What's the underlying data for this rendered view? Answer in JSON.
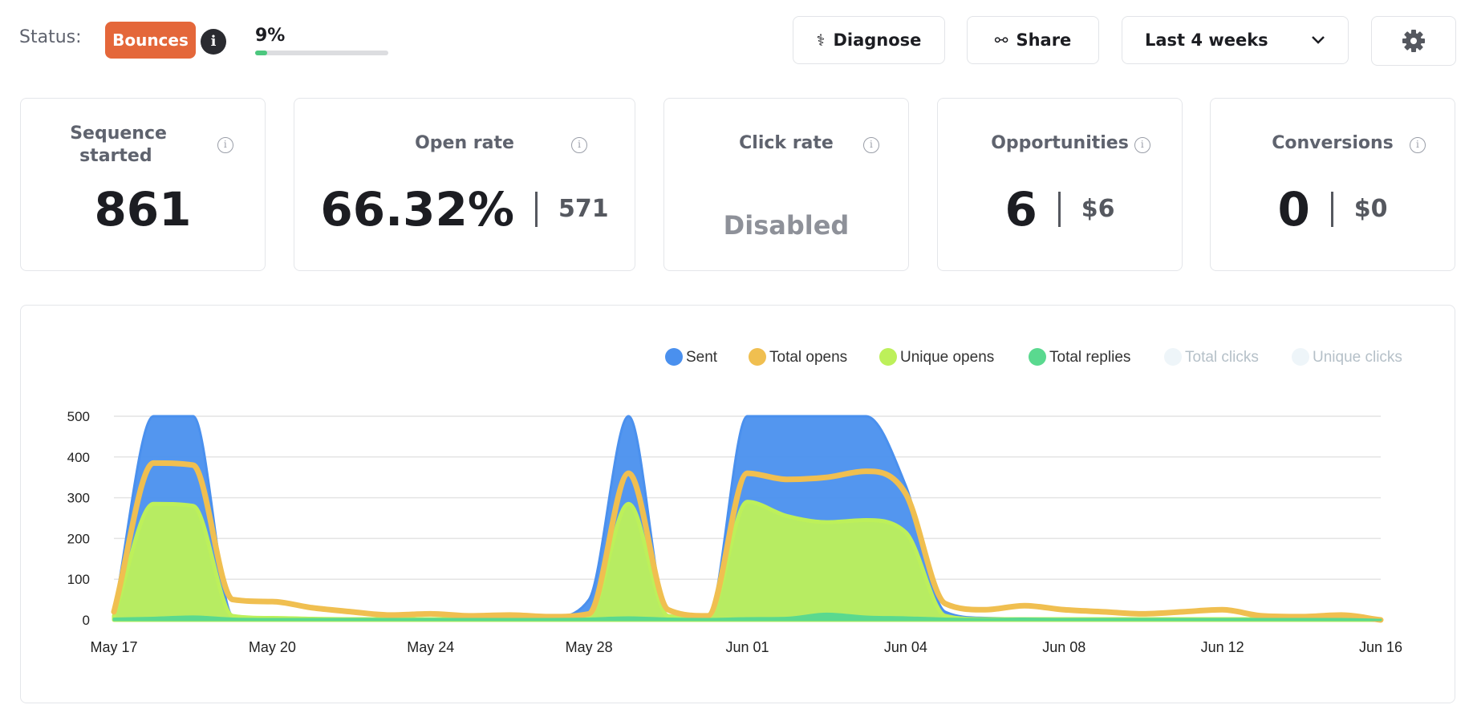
{
  "header": {
    "status_label": "Status:",
    "status_button": "Bounces",
    "progress": {
      "label": "9%",
      "value": 9
    },
    "buttons": [
      "Diagnose",
      "Share"
    ],
    "range_select": "Last 4 weeks"
  },
  "cards": [
    {
      "title": "Sequence started",
      "value": "861"
    },
    {
      "title": "Open rate",
      "value": "66.32%",
      "secondary": "571"
    },
    {
      "title": "Click rate",
      "value": "Disabled"
    },
    {
      "title": "Opportunities",
      "value": "6",
      "secondary": "$6"
    },
    {
      "title": "Conversions",
      "value": "0",
      "secondary": "$0"
    }
  ],
  "chart_data": {
    "type": "area",
    "categories": [
      "May 17",
      null,
      null,
      null,
      "May 20",
      null,
      null,
      null,
      "May 24",
      null,
      null,
      null,
      "May 28",
      null,
      null,
      null,
      "Jun 01",
      null,
      null,
      null,
      "Jun 04",
      null,
      null,
      null,
      "Jun 08",
      null,
      null,
      null,
      "Jun 12",
      null,
      null,
      null,
      "Jun 16"
    ],
    "ylim": [
      0,
      500
    ],
    "yticks": [
      0,
      100,
      200,
      300,
      400,
      500
    ],
    "grid": true,
    "series": [
      {
        "name": "Sent",
        "color": "#4a90ee",
        "values": [
          20,
          500,
          500,
          10,
          0,
          0,
          0,
          0,
          0,
          0,
          0,
          5,
          50,
          500,
          10,
          5,
          500,
          500,
          500,
          500,
          330,
          20,
          5,
          3,
          2,
          2,
          2,
          2,
          2,
          2,
          2,
          2,
          0
        ]
      },
      {
        "name": "Total opens",
        "color": "#f0bf50",
        "values": [
          20,
          385,
          380,
          50,
          45,
          30,
          20,
          12,
          15,
          10,
          12,
          8,
          15,
          360,
          25,
          10,
          360,
          345,
          350,
          365,
          310,
          40,
          25,
          35,
          25,
          20,
          15,
          20,
          25,
          10,
          8,
          12,
          0
        ]
      },
      {
        "name": "Unique opens",
        "color": "#bdf05a",
        "values": [
          10,
          285,
          280,
          10,
          5,
          3,
          2,
          2,
          2,
          2,
          2,
          2,
          10,
          285,
          10,
          5,
          290,
          255,
          240,
          245,
          215,
          10,
          2,
          2,
          2,
          2,
          2,
          2,
          2,
          2,
          2,
          2,
          0
        ]
      },
      {
        "name": "Total replies",
        "color": "#5ad98f",
        "values": [
          3,
          5,
          8,
          3,
          2,
          2,
          2,
          2,
          2,
          2,
          2,
          2,
          3,
          6,
          3,
          2,
          4,
          5,
          15,
          8,
          6,
          3,
          2,
          3,
          2,
          2,
          2,
          2,
          2,
          2,
          2,
          2,
          0
        ]
      },
      {
        "name": "Total clicks",
        "color": "#eef5f9",
        "visible": false
      },
      {
        "name": "Unique clicks",
        "color": "#eef5f9",
        "visible": false
      }
    ]
  }
}
